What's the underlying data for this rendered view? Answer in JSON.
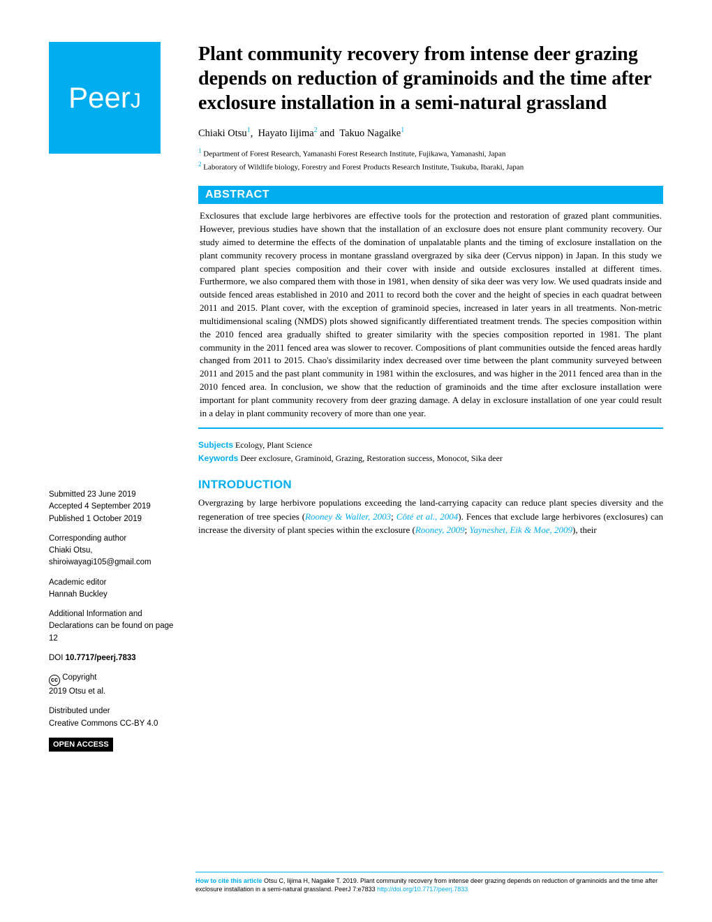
{
  "logo": {
    "text": "PeerJ",
    "bg": "#00aeef",
    "fg": "#ffffff"
  },
  "title": "Plant community recovery from intense deer grazing depends on reduction of graminoids and the time after exclosure installation in a semi-natural grassland",
  "authors": [
    {
      "name": "Chiaki Otsu",
      "sup": "1"
    },
    {
      "name": "Hayato Iijima",
      "sup": "2"
    },
    {
      "name": "Takuo Nagaike",
      "sup": "1"
    }
  ],
  "affiliations": [
    {
      "sup": "1",
      "text": "Department of Forest Research, Yamanashi Forest Research Institute, Fujikawa, Yamanashi, Japan"
    },
    {
      "sup": "2",
      "text": "Laboratory of Wildlife biology, Forestry and Forest Products Research Institute, Tsukuba, Ibaraki, Japan"
    }
  ],
  "abstract": {
    "heading": "ABSTRACT",
    "text": "Exclosures that exclude large herbivores are effective tools for the protection and restoration of grazed plant communities. However, previous studies have shown that the installation of an exclosure does not ensure plant community recovery. Our study aimed to determine the effects of the domination of unpalatable plants and the timing of exclosure installation on the plant community recovery process in montane grassland overgrazed by sika deer (Cervus nippon) in Japan. In this study we compared plant species composition and their cover with inside and outside exclosures installed at different times. Furthermore, we also compared them with those in 1981, when density of sika deer was very low. We used quadrats inside and outside fenced areas established in 2010 and 2011 to record both the cover and the height of species in each quadrat between 2011 and 2015. Plant cover, with the exception of graminoid species, increased in later years in all treatments. Non-metric multidimensional scaling (NMDS) plots showed significantly differentiated treatment trends. The species composition within the 2010 fenced area gradually shifted to greater similarity with the species composition reported in 1981. The plant community in the 2011 fenced area was slower to recover. Compositions of plant communities outside the fenced areas hardly changed from 2011 to 2015. Chao's dissimilarity index decreased over time between the plant community surveyed between 2011 and 2015 and the past plant community in 1981 within the exclosures, and was higher in the 2011 fenced area than in the 2010 fenced area. In conclusion, we show that the reduction of graminoids and the time after exclosure installation were important for plant community recovery from deer grazing damage. A delay in exclosure installation of one year could result in a delay in plant community recovery of more than one year."
  },
  "subjects": {
    "label": "Subjects",
    "text": "Ecology, Plant Science"
  },
  "keywords": {
    "label": "Keywords",
    "text": "Deer exclosure, Graminoid, Grazing, Restoration success, Monocot, Sika deer"
  },
  "introduction": {
    "heading": "INTRODUCTION",
    "paragraph_prefix": "Overgrazing by large herbivore populations exceeding the land-carrying capacity can reduce plant species diversity and the regeneration of tree species (",
    "cite1": "Rooney & Waller, 2003",
    "sep1": "; ",
    "cite2": "Côté et al., 2004",
    "mid": "). Fences that exclude large herbivores (exclosures) can increase the diversity of plant species within the exclosure (",
    "cite3": "Rooney, 2009",
    "sep2": "; ",
    "cite4": "Yayneshet, Eik & Moe, 2009",
    "suffix": "), their"
  },
  "meta": {
    "submitted": {
      "label": "Submitted",
      "value": "23 June 2019"
    },
    "accepted": {
      "label": "Accepted",
      "value": "4 September 2019"
    },
    "published": {
      "label": "Published",
      "value": "1 October 2019"
    },
    "corresponding": {
      "label": "Corresponding author",
      "name": "Chiaki Otsu,",
      "email": "shiroiwayagi105@gmail.com"
    },
    "editor": {
      "label": "Academic editor",
      "name": "Hannah Buckley"
    },
    "additional": "Additional Information and Declarations can be found on page 12",
    "doi": {
      "label": "DOI",
      "value": "10.7717/peerj.7833"
    },
    "copyright": {
      "label": "Copyright",
      "value": "2019 Otsu et al."
    },
    "distributed": {
      "label": "Distributed under",
      "value": "Creative Commons CC-BY 4.0"
    },
    "open_access": "OPEN ACCESS"
  },
  "footer": {
    "cite_label": "How to cite this article",
    "text": "Otsu C, Iijima H, Nagaike T. 2019. Plant community recovery from intense deer grazing depends on reduction of graminoids and the time after exclosure installation in a semi-natural grassland. PeerJ 7:e7833 ",
    "doi": "http://doi.org/10.7717/peerj.7833"
  },
  "colors": {
    "accent": "#00aeef",
    "text": "#000000",
    "bg": "#ffffff"
  }
}
